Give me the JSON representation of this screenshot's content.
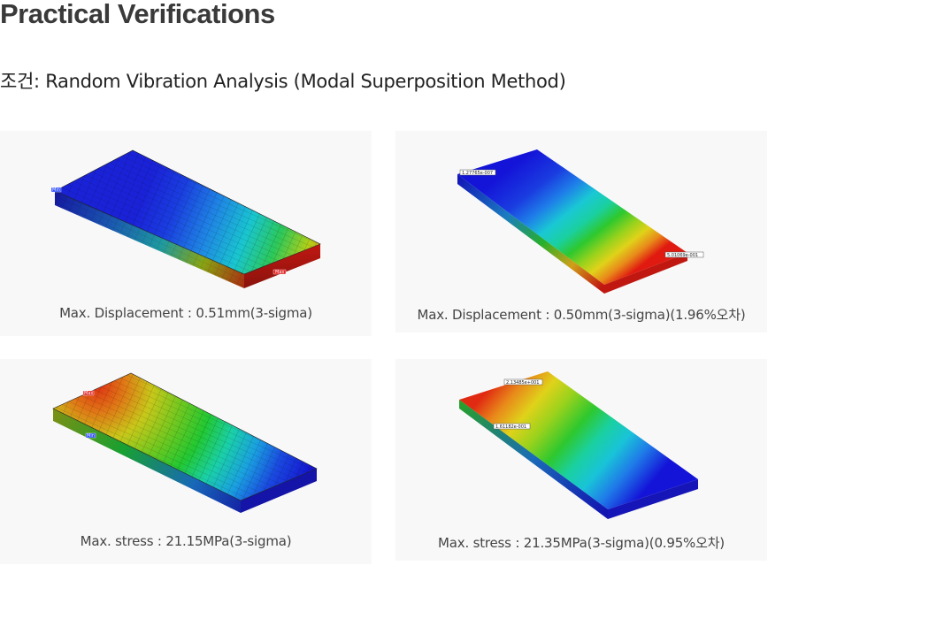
{
  "page": {
    "title": "Practical Verifications",
    "subtitle": "조건: Random Vibration Analysis (Modal Superposition Method)"
  },
  "panels": [
    {
      "caption": "Max. Displacement : 0.51mm(3-sigma)",
      "min_tag": "Min",
      "max_tag": "Max"
    },
    {
      "caption": "Max. Displacement : 0.50mm(3-sigma)(1.96%오차)",
      "min_tag": "1.27765e-007",
      "max_tag": "5.01069e-001"
    },
    {
      "caption": "Max. stress : 21.15MPa(3-sigma)",
      "max_tag": "Max",
      "min_tag": "Min"
    },
    {
      "caption": "Max. stress : 21.35MPa(3-sigma)(0.95%오차)",
      "max_tag": "2.13485e+001",
      "min_tag": "1.61182e-001"
    }
  ],
  "colors": {
    "contour_scale": [
      "#1a1ae0",
      "#1f7be8",
      "#19c3d8",
      "#1ad0a0",
      "#2ec82e",
      "#9ad21c",
      "#e0d21a",
      "#e88a1a",
      "#e01a10"
    ],
    "panel_background": "#f8f8f8"
  }
}
